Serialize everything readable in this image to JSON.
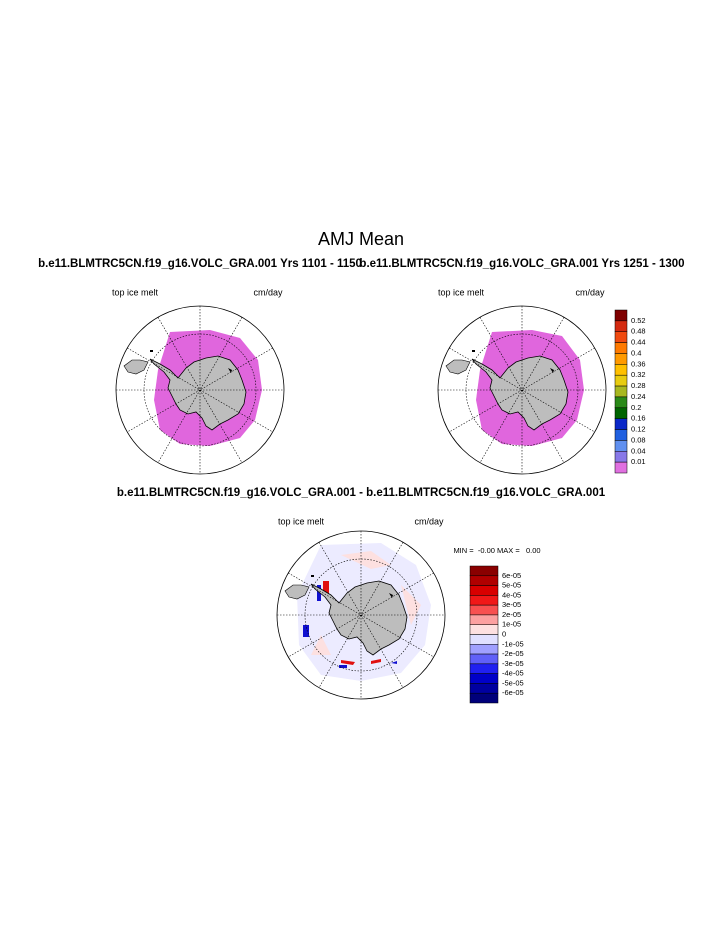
{
  "title": "AMJ Mean",
  "panels": [
    {
      "subtitle": "b.e11.BLMTRC5CN.f19_g16.VOLC_GRA.001  Yrs 1101 - 1150",
      "left_label": "top ice melt",
      "right_label": "cm/day"
    },
    {
      "subtitle": "b.e11.BLMTRC5CN.f19_g16.VOLC_GRA.001  Yrs 1251 - 1300",
      "left_label": "top ice melt",
      "right_label": "cm/day"
    },
    {
      "subtitle": "b.e11.BLMTRC5CN.f19_g16.VOLC_GRA.001 - b.e11.BLMTRC5CN.f19_g16.VOLC_GRA.001",
      "left_label": "top ice melt",
      "right_label": "cm/day",
      "stats": "MIN =  -0.00 MAX =   0.00"
    }
  ],
  "colorbars": [
    {
      "labels": [
        "0.52",
        "0.48",
        "0.44",
        "0.4",
        "0.36",
        "0.32",
        "0.28",
        "0.24",
        "0.2",
        "0.16",
        "0.12",
        "0.08",
        "0.04",
        "0.01"
      ],
      "colors": [
        "#7f0000",
        "#d42a10",
        "#f04a10",
        "#ff7a00",
        "#ff9a00",
        "#ffc000",
        "#e8cc10",
        "#a8b820",
        "#2a8a18",
        "#006400",
        "#0a28c8",
        "#2060e0",
        "#6090f0",
        "#8878e8",
        "#e070e0"
      ]
    },
    {
      "labels": [
        "6e-05",
        "5e-05",
        "4e-05",
        "3e-05",
        "2e-05",
        "1e-05",
        "0",
        "-1e-05",
        "-2e-05",
        "-3e-05",
        "-4e-05",
        "-5e-05",
        "-6e-05"
      ],
      "colors": [
        "#8a0000",
        "#b00000",
        "#d80000",
        "#f01818",
        "#f85050",
        "#fca0a0",
        "#fde0e0",
        "#e0e0ff",
        "#a0a0ff",
        "#6060f8",
        "#2020f0",
        "#0000c8",
        "#0000a0",
        "#00007a"
      ]
    }
  ]
}
